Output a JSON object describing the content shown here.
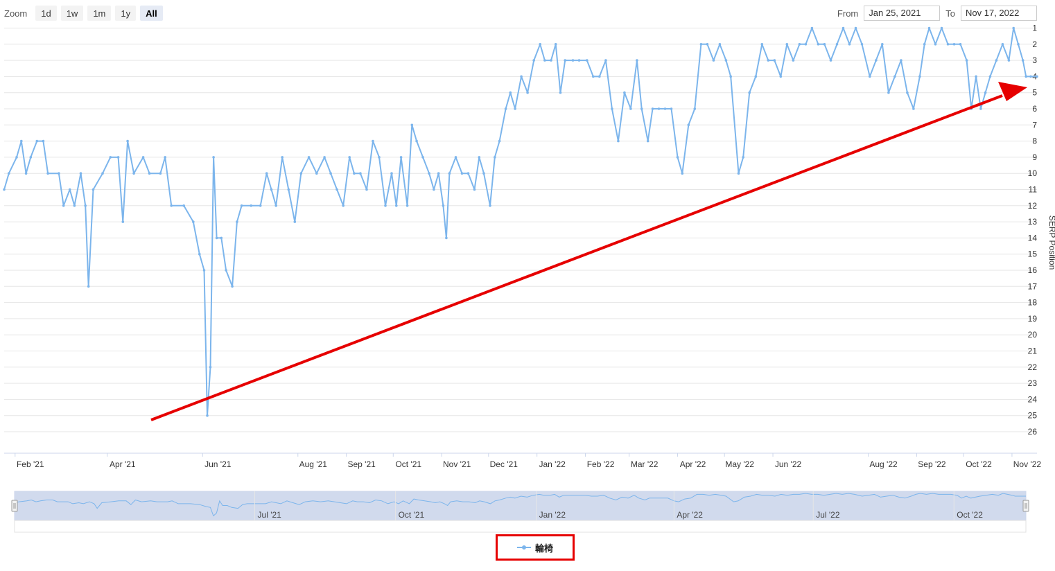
{
  "toolbar": {
    "zoom_label": "Zoom",
    "zoom_buttons": [
      "1d",
      "1w",
      "1m",
      "1y",
      "All"
    ],
    "active_zoom": "All",
    "from_label": "From",
    "from_value": "Jan 25, 2021",
    "to_label": "To",
    "to_value": "Nov 17, 2022"
  },
  "legend": {
    "label": "輪椅",
    "color": "#7cb5ec"
  },
  "colors": {
    "series": "#7cb5ec",
    "arrow": "#e60000",
    "navigator_fill": "#ccd6eb",
    "grid": "#e6e6e6"
  },
  "chart_data": {
    "type": "line",
    "ylabel": "SERP Position",
    "y_reversed": true,
    "ylim": [
      1,
      26
    ],
    "y_ticks": [
      1,
      2,
      3,
      4,
      5,
      6,
      7,
      8,
      9,
      10,
      11,
      12,
      13,
      14,
      15,
      16,
      17,
      18,
      19,
      20,
      21,
      22,
      23,
      24,
      25,
      26
    ],
    "x_range": [
      "2021-01-25",
      "2022-11-17"
    ],
    "x_tick_labels": [
      {
        "label": "Feb '21",
        "date": "2021-02-01"
      },
      {
        "label": "Apr '21",
        "date": "2021-04-01"
      },
      {
        "label": "Jun '21",
        "date": "2021-06-01"
      },
      {
        "label": "Aug '21",
        "date": "2021-08-01"
      },
      {
        "label": "Sep '21",
        "date": "2021-09-01"
      },
      {
        "label": "Oct '21",
        "date": "2021-10-01"
      },
      {
        "label": "Nov '21",
        "date": "2021-11-01"
      },
      {
        "label": "Dec '21",
        "date": "2021-12-01"
      },
      {
        "label": "Jan '22",
        "date": "2022-01-01"
      },
      {
        "label": "Feb '22",
        "date": "2022-02-01"
      },
      {
        "label": "Mar '22",
        "date": "2022-03-01"
      },
      {
        "label": "Apr '22",
        "date": "2022-04-01"
      },
      {
        "label": "May '22",
        "date": "2022-05-01"
      },
      {
        "label": "Jun '22",
        "date": "2022-06-01"
      },
      {
        "label": "Aug '22",
        "date": "2022-08-01"
      },
      {
        "label": "Sep '22",
        "date": "2022-09-01"
      },
      {
        "label": "Oct '22",
        "date": "2022-10-01"
      },
      {
        "label": "Nov '22",
        "date": "2022-11-01"
      }
    ],
    "navigator_tick_labels": [
      {
        "label": "Jul '21",
        "date": "2021-07-01"
      },
      {
        "label": "Oct '21",
        "date": "2021-10-01"
      },
      {
        "label": "Jan '22",
        "date": "2022-01-01"
      },
      {
        "label": "Apr '22",
        "date": "2022-04-01"
      },
      {
        "label": "Jul '22",
        "date": "2022-07-01"
      },
      {
        "label": "Oct '22",
        "date": "2022-10-01"
      }
    ],
    "series": [
      {
        "name": "輪椅",
        "points": [
          [
            "2021-01-25",
            11
          ],
          [
            "2021-01-28",
            10
          ],
          [
            "2021-02-02",
            9
          ],
          [
            "2021-02-05",
            8
          ],
          [
            "2021-02-08",
            10
          ],
          [
            "2021-02-11",
            9
          ],
          [
            "2021-02-15",
            8
          ],
          [
            "2021-02-19",
            8
          ],
          [
            "2021-02-22",
            10
          ],
          [
            "2021-03-01",
            10
          ],
          [
            "2021-03-04",
            12
          ],
          [
            "2021-03-08",
            11
          ],
          [
            "2021-03-11",
            12
          ],
          [
            "2021-03-15",
            10
          ],
          [
            "2021-03-18",
            12
          ],
          [
            "2021-03-20",
            17
          ],
          [
            "2021-03-23",
            11
          ],
          [
            "2021-03-29",
            10
          ],
          [
            "2021-04-03",
            9
          ],
          [
            "2021-04-08",
            9
          ],
          [
            "2021-04-11",
            13
          ],
          [
            "2021-04-14",
            8
          ],
          [
            "2021-04-18",
            10
          ],
          [
            "2021-04-24",
            9
          ],
          [
            "2021-04-28",
            10
          ],
          [
            "2021-05-05",
            10
          ],
          [
            "2021-05-08",
            9
          ],
          [
            "2021-05-12",
            12
          ],
          [
            "2021-05-20",
            12
          ],
          [
            "2021-05-26",
            13
          ],
          [
            "2021-05-30",
            15
          ],
          [
            "2021-06-02",
            16
          ],
          [
            "2021-06-04",
            25
          ],
          [
            "2021-06-06",
            22
          ],
          [
            "2021-06-08",
            9
          ],
          [
            "2021-06-10",
            14
          ],
          [
            "2021-06-13",
            14
          ],
          [
            "2021-06-16",
            16
          ],
          [
            "2021-06-20",
            17
          ],
          [
            "2021-06-23",
            13
          ],
          [
            "2021-06-26",
            12
          ],
          [
            "2021-07-02",
            12
          ],
          [
            "2021-07-08",
            12
          ],
          [
            "2021-07-12",
            10
          ],
          [
            "2021-07-15",
            11
          ],
          [
            "2021-07-18",
            12
          ],
          [
            "2021-07-22",
            9
          ],
          [
            "2021-07-26",
            11
          ],
          [
            "2021-07-30",
            13
          ],
          [
            "2021-08-03",
            10
          ],
          [
            "2021-08-08",
            9
          ],
          [
            "2021-08-13",
            10
          ],
          [
            "2021-08-18",
            9
          ],
          [
            "2021-08-22",
            10
          ],
          [
            "2021-08-26",
            11
          ],
          [
            "2021-08-30",
            12
          ],
          [
            "2021-09-03",
            9
          ],
          [
            "2021-09-06",
            10
          ],
          [
            "2021-09-10",
            10
          ],
          [
            "2021-09-14",
            11
          ],
          [
            "2021-09-18",
            8
          ],
          [
            "2021-09-22",
            9
          ],
          [
            "2021-09-26",
            12
          ],
          [
            "2021-09-30",
            10
          ],
          [
            "2021-10-03",
            12
          ],
          [
            "2021-10-06",
            9
          ],
          [
            "2021-10-10",
            12
          ],
          [
            "2021-10-13",
            7
          ],
          [
            "2021-10-16",
            8
          ],
          [
            "2021-10-20",
            9
          ],
          [
            "2021-10-24",
            10
          ],
          [
            "2021-10-27",
            11
          ],
          [
            "2021-10-30",
            10
          ],
          [
            "2021-11-02",
            12
          ],
          [
            "2021-11-04",
            14
          ],
          [
            "2021-11-06",
            10
          ],
          [
            "2021-11-10",
            9
          ],
          [
            "2021-11-14",
            10
          ],
          [
            "2021-11-18",
            10
          ],
          [
            "2021-11-22",
            11
          ],
          [
            "2021-11-25",
            9
          ],
          [
            "2021-11-28",
            10
          ],
          [
            "2021-12-02",
            12
          ],
          [
            "2021-12-05",
            9
          ],
          [
            "2021-12-08",
            8
          ],
          [
            "2021-12-12",
            6
          ],
          [
            "2021-12-15",
            5
          ],
          [
            "2021-12-18",
            6
          ],
          [
            "2021-12-22",
            4
          ],
          [
            "2021-12-26",
            5
          ],
          [
            "2021-12-30",
            3
          ],
          [
            "2022-01-03",
            2
          ],
          [
            "2022-01-06",
            3
          ],
          [
            "2022-01-10",
            3
          ],
          [
            "2022-01-13",
            2
          ],
          [
            "2022-01-16",
            5
          ],
          [
            "2022-01-19",
            3
          ],
          [
            "2022-01-24",
            3
          ],
          [
            "2022-01-28",
            3
          ],
          [
            "2022-02-02",
            3
          ],
          [
            "2022-02-06",
            4
          ],
          [
            "2022-02-10",
            4
          ],
          [
            "2022-02-14",
            3
          ],
          [
            "2022-02-18",
            6
          ],
          [
            "2022-02-22",
            8
          ],
          [
            "2022-02-26",
            5
          ],
          [
            "2022-03-02",
            6
          ],
          [
            "2022-03-06",
            3
          ],
          [
            "2022-03-09",
            6
          ],
          [
            "2022-03-13",
            8
          ],
          [
            "2022-03-16",
            6
          ],
          [
            "2022-03-20",
            6
          ],
          [
            "2022-03-24",
            6
          ],
          [
            "2022-03-28",
            6
          ],
          [
            "2022-04-01",
            9
          ],
          [
            "2022-04-04",
            10
          ],
          [
            "2022-04-08",
            7
          ],
          [
            "2022-04-12",
            6
          ],
          [
            "2022-04-16",
            2
          ],
          [
            "2022-04-20",
            2
          ],
          [
            "2022-04-24",
            3
          ],
          [
            "2022-04-28",
            2
          ],
          [
            "2022-05-02",
            3
          ],
          [
            "2022-05-05",
            4
          ],
          [
            "2022-05-10",
            10
          ],
          [
            "2022-05-13",
            9
          ],
          [
            "2022-05-17",
            5
          ],
          [
            "2022-05-21",
            4
          ],
          [
            "2022-05-25",
            2
          ],
          [
            "2022-05-29",
            3
          ],
          [
            "2022-06-02",
            3
          ],
          [
            "2022-06-06",
            4
          ],
          [
            "2022-06-10",
            2
          ],
          [
            "2022-06-14",
            3
          ],
          [
            "2022-06-18",
            2
          ],
          [
            "2022-06-22",
            2
          ],
          [
            "2022-06-26",
            1
          ],
          [
            "2022-06-30",
            2
          ],
          [
            "2022-07-04",
            2
          ],
          [
            "2022-07-08",
            3
          ],
          [
            "2022-07-12",
            2
          ],
          [
            "2022-07-16",
            1
          ],
          [
            "2022-07-20",
            2
          ],
          [
            "2022-07-24",
            1
          ],
          [
            "2022-07-28",
            2
          ],
          [
            "2022-08-02",
            4
          ],
          [
            "2022-08-06",
            3
          ],
          [
            "2022-08-10",
            2
          ],
          [
            "2022-08-14",
            5
          ],
          [
            "2022-08-18",
            4
          ],
          [
            "2022-08-22",
            3
          ],
          [
            "2022-08-26",
            5
          ],
          [
            "2022-08-30",
            6
          ],
          [
            "2022-09-03",
            4
          ],
          [
            "2022-09-06",
            2
          ],
          [
            "2022-09-09",
            1
          ],
          [
            "2022-09-13",
            2
          ],
          [
            "2022-09-17",
            1
          ],
          [
            "2022-09-21",
            2
          ],
          [
            "2022-09-25",
            2
          ],
          [
            "2022-09-29",
            2
          ],
          [
            "2022-10-03",
            3
          ],
          [
            "2022-10-06",
            6
          ],
          [
            "2022-10-09",
            4
          ],
          [
            "2022-10-12",
            6
          ],
          [
            "2022-10-15",
            5
          ],
          [
            "2022-10-18",
            4
          ],
          [
            "2022-10-22",
            3
          ],
          [
            "2022-10-26",
            2
          ],
          [
            "2022-10-30",
            3
          ],
          [
            "2022-11-02",
            1
          ],
          [
            "2022-11-05",
            2
          ],
          [
            "2022-11-08",
            3
          ],
          [
            "2022-11-10",
            4
          ],
          [
            "2022-11-13",
            4
          ],
          [
            "2022-11-17",
            4
          ]
        ]
      }
    ]
  }
}
